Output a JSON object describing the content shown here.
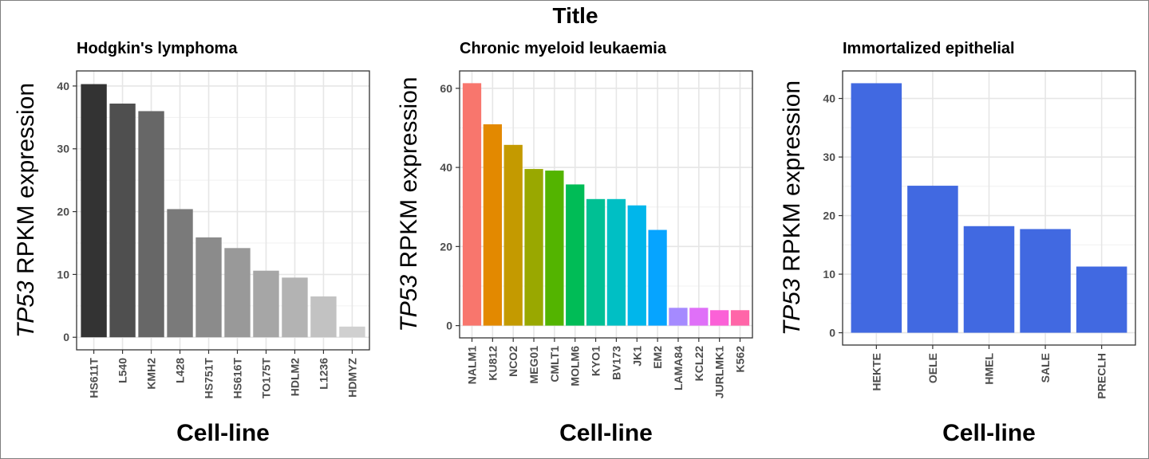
{
  "figure": {
    "title": "Title"
  },
  "chart_data": [
    {
      "type": "bar",
      "title": "Hodgkin's lymphoma",
      "xlabel": "Cell-line",
      "ylabel_gene": "TP53",
      "ylabel_rest": " RPKM expression",
      "ylim": [
        -2,
        42.4
      ],
      "yticks": [
        0,
        10,
        20,
        30,
        40
      ],
      "categories": [
        "HS611T",
        "L540",
        "KMH2",
        "L428",
        "HS751T",
        "HS616T",
        "TO175T",
        "HDLM2",
        "L1236",
        "HDMYZ"
      ],
      "values": [
        40.3,
        37.2,
        36.0,
        20.4,
        15.9,
        14.2,
        10.6,
        9.5,
        6.5,
        1.7
      ],
      "colors": [
        "#333333",
        "#4f4f4f",
        "#676767",
        "#7a7a7a",
        "#8b8b8b",
        "#999999",
        "#a6a6a6",
        "#b3b3b3",
        "#c2c2c2",
        "#d0d0d0"
      ],
      "legend": "none",
      "grid": true
    },
    {
      "type": "bar",
      "title": "Chronic myeloid leukaemia",
      "xlabel": "Cell-line",
      "ylabel_gene": "TP53",
      "ylabel_rest": " RPKM expression",
      "ylim": [
        -3.1,
        64.4
      ],
      "yticks": [
        0,
        20,
        40,
        60
      ],
      "categories": [
        "NALM1",
        "KU812",
        "NCO2",
        "MEG01",
        "CMLT1",
        "MOLM6",
        "KYO1",
        "BV173",
        "JK1",
        "EM2",
        "LAMA84",
        "KCL22",
        "JURLMK1",
        "K562"
      ],
      "values": [
        61.3,
        50.9,
        45.7,
        39.6,
        39.2,
        35.7,
        32.0,
        32.0,
        30.4,
        24.2,
        4.5,
        4.5,
        3.9,
        3.9
      ],
      "colors": [
        "#f8766d",
        "#e38900",
        "#c49a00",
        "#99a800",
        "#53b400",
        "#00bc56",
        "#00c094",
        "#00bfc4",
        "#00b6eb",
        "#06a4ff",
        "#a58aff",
        "#df70f8",
        "#fb61d7",
        "#ff66a8"
      ],
      "legend": "none",
      "grid": true
    },
    {
      "type": "bar",
      "title": "Immortalized epithelial",
      "xlabel": "Cell-line",
      "ylabel_gene": "TP53",
      "ylabel_rest": " RPKM expression",
      "ylim": [
        -2.1,
        44.7
      ],
      "yticks": [
        0,
        10,
        20,
        30,
        40
      ],
      "categories": [
        "HEKTE",
        "OELE",
        "HMEL",
        "SALE",
        "PRECLH"
      ],
      "values": [
        42.6,
        25.1,
        18.2,
        17.7,
        11.3
      ],
      "colors": [
        "#4169e1",
        "#4169e1",
        "#4169e1",
        "#4169e1",
        "#4169e1"
      ],
      "legend": "none",
      "grid": true
    }
  ]
}
